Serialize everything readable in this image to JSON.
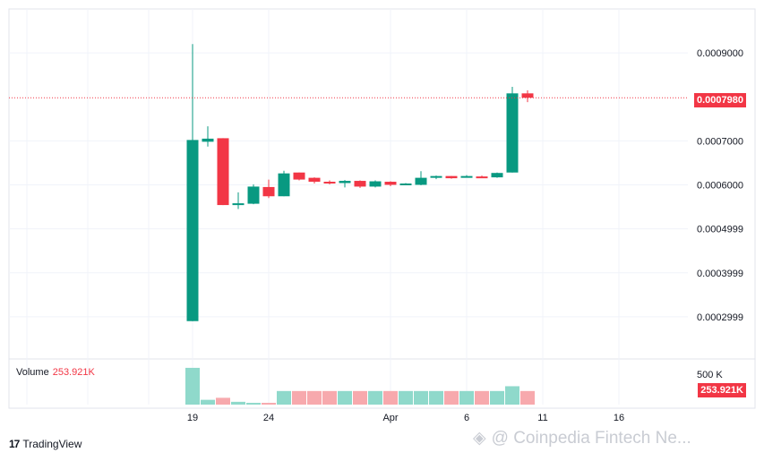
{
  "chart_data": {
    "type": "candlestick",
    "price_axis": {
      "ticks": [
        "0.0009000",
        "0.0007000",
        "0.0006000",
        "0.0004999",
        "0.0003999",
        "0.0002999"
      ],
      "range": [
        0.000206,
        0.001
      ]
    },
    "date_axis": {
      "ticks": [
        "19",
        "24",
        "Apr",
        "6",
        "11",
        "16"
      ]
    },
    "candles": [
      {
        "o": 0.00029,
        "h": 0.00092,
        "l": 0.00029,
        "c": 0.000702
      },
      {
        "o": 0.000698,
        "h": 0.000733,
        "l": 0.000687,
        "c": 0.000705
      },
      {
        "o": 0.000706,
        "h": 0.000706,
        "l": 0.000554,
        "c": 0.000554
      },
      {
        "o": 0.000557,
        "h": 0.000583,
        "l": 0.000545,
        "c": 0.000558
      },
      {
        "o": 0.000557,
        "h": 0.000601,
        "l": 0.000556,
        "c": 0.000596
      },
      {
        "o": 0.000595,
        "h": 0.000612,
        "l": 0.00057,
        "c": 0.000574
      },
      {
        "o": 0.000574,
        "h": 0.000632,
        "l": 0.000574,
        "c": 0.000626
      },
      {
        "o": 0.000628,
        "h": 0.000628,
        "l": 0.00061,
        "c": 0.000612
      },
      {
        "o": 0.000616,
        "h": 0.000617,
        "l": 0.000603,
        "c": 0.000607
      },
      {
        "o": 0.000607,
        "h": 0.00061,
        "l": 0.000601,
        "c": 0.000604
      },
      {
        "o": 0.000604,
        "h": 0.000611,
        "l": 0.000594,
        "c": 0.000609
      },
      {
        "o": 0.000609,
        "h": 0.00061,
        "l": 0.000593,
        "c": 0.000596
      },
      {
        "o": 0.000596,
        "h": 0.00061,
        "l": 0.000594,
        "c": 0.000608
      },
      {
        "o": 0.000607,
        "h": 0.000608,
        "l": 0.000597,
        "c": 0.0006
      },
      {
        "o": 0.0006,
        "h": 0.000604,
        "l": 0.000599,
        "c": 0.000603
      },
      {
        "o": 0.0006,
        "h": 0.000631,
        "l": 0.000599,
        "c": 0.000616
      },
      {
        "o": 0.000616,
        "h": 0.000621,
        "l": 0.000613,
        "c": 0.00062
      },
      {
        "o": 0.00062,
        "h": 0.00062,
        "l": 0.000614,
        "c": 0.000615
      },
      {
        "o": 0.000618,
        "h": 0.000622,
        "l": 0.000617,
        "c": 0.00062
      },
      {
        "o": 0.000619,
        "h": 0.000621,
        "l": 0.000617,
        "c": 0.000618
      },
      {
        "o": 0.000617,
        "h": 0.000628,
        "l": 0.000616,
        "c": 0.000627
      },
      {
        "o": 0.000628,
        "h": 0.000823,
        "l": 0.000628,
        "c": 0.000808
      },
      {
        "o": 0.000808,
        "h": 0.000815,
        "l": 0.000788,
        "c": 0.000798
      }
    ],
    "volumes_k": [
      460,
      60,
      85,
      35,
      22,
      22,
      170,
      170,
      170,
      170,
      170,
      170,
      170,
      170,
      170,
      170,
      170,
      170,
      170,
      170,
      170,
      230,
      170
    ],
    "volume_max_k": 560,
    "last_price": "0.0007980",
    "volume_axis_tick": "500 K",
    "colors": {
      "up": "#089981",
      "down": "#f23645",
      "vol_up": "#8fd9cb",
      "vol_down": "#f7a9ad",
      "grid": "#f0f3fa"
    }
  },
  "volume": {
    "label": "Volume",
    "value": "253.921K",
    "badge": "253.921K"
  },
  "brand": {
    "logo": "17",
    "name": "TradingView"
  },
  "watermark": {
    "text": "@ Coinpedia Fintech Ne..."
  }
}
